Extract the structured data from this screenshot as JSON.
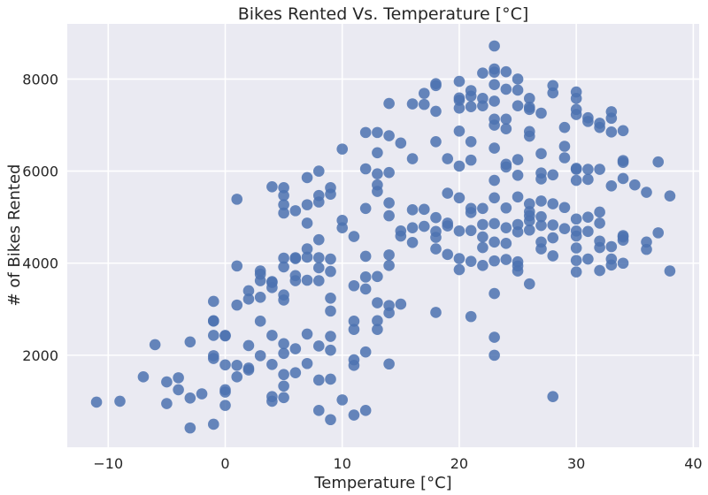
{
  "chart_data": {
    "type": "scatter",
    "title": "Bikes Rented Vs. Temperature [°C]",
    "xlabel": "Temperature [°C]",
    "ylabel": "# of Bikes Rented",
    "xlim": [
      -13.5,
      40.5
    ],
    "ylim": [
      0,
      9200
    ],
    "xticks": [
      -10,
      0,
      10,
      20,
      30,
      40
    ],
    "yticks": [
      2000,
      4000,
      6000,
      8000
    ],
    "xtick_labels": [
      "−10",
      "0",
      "10",
      "20",
      "30",
      "40"
    ],
    "ytick_labels": [
      "2000",
      "4000",
      "6000",
      "8000"
    ],
    "grid": true,
    "legend": "none",
    "color": "#4c72b0",
    "points": [
      [
        -11,
        980
      ],
      [
        -9,
        1000
      ],
      [
        -7,
        1530
      ],
      [
        -6,
        2230
      ],
      [
        -5,
        950
      ],
      [
        -5,
        1420
      ],
      [
        -4,
        1510
      ],
      [
        -4,
        1250
      ],
      [
        -3,
        2290
      ],
      [
        -3,
        420
      ],
      [
        -3,
        1070
      ],
      [
        -2,
        1160
      ],
      [
        -1,
        500
      ],
      [
        -1,
        1930
      ],
      [
        -1,
        1990
      ],
      [
        -1,
        2430
      ],
      [
        -1,
        2740
      ],
      [
        -1,
        2750
      ],
      [
        -1,
        3170
      ],
      [
        0,
        910
      ],
      [
        0,
        1200
      ],
      [
        0,
        1250
      ],
      [
        0,
        1790
      ],
      [
        0,
        2420
      ],
      [
        0,
        2430
      ],
      [
        1,
        1530
      ],
      [
        1,
        1780
      ],
      [
        1,
        3090
      ],
      [
        1,
        3940
      ],
      [
        1,
        5390
      ],
      [
        2,
        1680
      ],
      [
        2,
        1720
      ],
      [
        2,
        2210
      ],
      [
        2,
        3220
      ],
      [
        2,
        3400
      ],
      [
        3,
        1990
      ],
      [
        3,
        2740
      ],
      [
        3,
        3260
      ],
      [
        3,
        3620
      ],
      [
        3,
        3760
      ],
      [
        3,
        3830
      ],
      [
        4,
        1000
      ],
      [
        4,
        1100
      ],
      [
        4,
        1800
      ],
      [
        4,
        2430
      ],
      [
        4,
        3470
      ],
      [
        4,
        3580
      ],
      [
        4,
        3600
      ],
      [
        4,
        5660
      ],
      [
        5,
        1080
      ],
      [
        5,
        1330
      ],
      [
        5,
        1580
      ],
      [
        5,
        2040
      ],
      [
        5,
        2250
      ],
      [
        5,
        3200
      ],
      [
        5,
        3310
      ],
      [
        5,
        3920
      ],
      [
        5,
        4110
      ],
      [
        5,
        5090
      ],
      [
        5,
        5270
      ],
      [
        5,
        5470
      ],
      [
        5,
        5640
      ],
      [
        6,
        1620
      ],
      [
        6,
        2140
      ],
      [
        6,
        3620
      ],
      [
        6,
        3730
      ],
      [
        6,
        4100
      ],
      [
        6,
        4120
      ],
      [
        6,
        5140
      ],
      [
        7,
        1820
      ],
      [
        7,
        2460
      ],
      [
        7,
        3630
      ],
      [
        7,
        4130
      ],
      [
        7,
        4310
      ],
      [
        7,
        4870
      ],
      [
        7,
        5270
      ],
      [
        7,
        5860
      ],
      [
        8,
        800
      ],
      [
        8,
        1460
      ],
      [
        8,
        2200
      ],
      [
        8,
        3620
      ],
      [
        8,
        3900
      ],
      [
        8,
        4120
      ],
      [
        8,
        4510
      ],
      [
        8,
        5330
      ],
      [
        8,
        5470
      ],
      [
        8,
        6000
      ],
      [
        9,
        600
      ],
      [
        9,
        1480
      ],
      [
        9,
        2110
      ],
      [
        9,
        2410
      ],
      [
        9,
        2960
      ],
      [
        9,
        3240
      ],
      [
        9,
        3820
      ],
      [
        9,
        4090
      ],
      [
        9,
        5500
      ],
      [
        9,
        5640
      ],
      [
        10,
        1030
      ],
      [
        10,
        4770
      ],
      [
        10,
        4930
      ],
      [
        10,
        6480
      ],
      [
        11,
        700
      ],
      [
        11,
        1780
      ],
      [
        11,
        1900
      ],
      [
        11,
        2560
      ],
      [
        11,
        2740
      ],
      [
        11,
        3510
      ],
      [
        11,
        4580
      ],
      [
        12,
        800
      ],
      [
        12,
        2070
      ],
      [
        12,
        3440
      ],
      [
        12,
        3700
      ],
      [
        12,
        4150
      ],
      [
        12,
        5190
      ],
      [
        12,
        6050
      ],
      [
        12,
        6840
      ],
      [
        13,
        2560
      ],
      [
        13,
        2750
      ],
      [
        13,
        3140
      ],
      [
        13,
        3710
      ],
      [
        13,
        5560
      ],
      [
        13,
        5700
      ],
      [
        13,
        5940
      ],
      [
        13,
        6400
      ],
      [
        13,
        6840
      ],
      [
        14,
        1810
      ],
      [
        14,
        2920
      ],
      [
        14,
        3080
      ],
      [
        14,
        3950
      ],
      [
        14,
        4180
      ],
      [
        14,
        5030
      ],
      [
        14,
        5310
      ],
      [
        14,
        5970
      ],
      [
        14,
        6770
      ],
      [
        14,
        7470
      ],
      [
        15,
        3110
      ],
      [
        15,
        4590
      ],
      [
        15,
        4700
      ],
      [
        15,
        6610
      ],
      [
        16,
        4450
      ],
      [
        16,
        4770
      ],
      [
        16,
        5160
      ],
      [
        16,
        6270
      ],
      [
        16,
        7460
      ],
      [
        17,
        4800
      ],
      [
        17,
        5170
      ],
      [
        17,
        7450
      ],
      [
        17,
        7690
      ],
      [
        18,
        2930
      ],
      [
        18,
        4310
      ],
      [
        18,
        4560
      ],
      [
        18,
        4690
      ],
      [
        18,
        4990
      ],
      [
        18,
        6640
      ],
      [
        18,
        7300
      ],
      [
        18,
        7860
      ],
      [
        18,
        7900
      ],
      [
        19,
        4190
      ],
      [
        19,
        4810
      ],
      [
        19,
        4870
      ],
      [
        19,
        5520
      ],
      [
        19,
        6270
      ],
      [
        20,
        3860
      ],
      [
        20,
        4100
      ],
      [
        20,
        4700
      ],
      [
        20,
        5420
      ],
      [
        20,
        6110
      ],
      [
        20,
        6870
      ],
      [
        20,
        7370
      ],
      [
        20,
        7540
      ],
      [
        20,
        7590
      ],
      [
        20,
        7950
      ],
      [
        21,
        2840
      ],
      [
        21,
        4040
      ],
      [
        21,
        4710
      ],
      [
        21,
        5100
      ],
      [
        21,
        5190
      ],
      [
        21,
        6240
      ],
      [
        21,
        6640
      ],
      [
        21,
        7400
      ],
      [
        21,
        7630
      ],
      [
        21,
        7750
      ],
      [
        22,
        3950
      ],
      [
        22,
        4340
      ],
      [
        22,
        4570
      ],
      [
        22,
        4840
      ],
      [
        22,
        5190
      ],
      [
        22,
        7420
      ],
      [
        22,
        7580
      ],
      [
        22,
        8130
      ],
      [
        23,
        2000
      ],
      [
        23,
        2390
      ],
      [
        23,
        3340
      ],
      [
        23,
        4050
      ],
      [
        23,
        4460
      ],
      [
        23,
        4860
      ],
      [
        23,
        5420
      ],
      [
        23,
        5800
      ],
      [
        23,
        6500
      ],
      [
        23,
        7000
      ],
      [
        23,
        7130
      ],
      [
        23,
        7520
      ],
      [
        23,
        7880
      ],
      [
        23,
        8150
      ],
      [
        23,
        8220
      ],
      [
        23,
        8720
      ],
      [
        24,
        4080
      ],
      [
        24,
        4430
      ],
      [
        24,
        4770
      ],
      [
        24,
        5200
      ],
      [
        24,
        6090
      ],
      [
        24,
        6150
      ],
      [
        24,
        6920
      ],
      [
        24,
        7130
      ],
      [
        24,
        7780
      ],
      [
        24,
        8160
      ],
      [
        25,
        3830
      ],
      [
        25,
        3940
      ],
      [
        25,
        4030
      ],
      [
        25,
        4680
      ],
      [
        25,
        4840
      ],
      [
        25,
        5440
      ],
      [
        25,
        5910
      ],
      [
        25,
        6250
      ],
      [
        25,
        7420
      ],
      [
        25,
        7760
      ],
      [
        25,
        8000
      ],
      [
        26,
        3550
      ],
      [
        26,
        4720
      ],
      [
        26,
        4920
      ],
      [
        26,
        5030
      ],
      [
        26,
        5120
      ],
      [
        26,
        5290
      ],
      [
        26,
        6760
      ],
      [
        26,
        6860
      ],
      [
        26,
        7340
      ],
      [
        26,
        7390
      ],
      [
        26,
        7580
      ],
      [
        27,
        4310
      ],
      [
        27,
        4460
      ],
      [
        27,
        4820
      ],
      [
        27,
        5010
      ],
      [
        27,
        5350
      ],
      [
        27,
        5830
      ],
      [
        27,
        5960
      ],
      [
        27,
        6380
      ],
      [
        27,
        7260
      ],
      [
        28,
        1100
      ],
      [
        28,
        4160
      ],
      [
        28,
        4550
      ],
      [
        28,
        4830
      ],
      [
        28,
        5290
      ],
      [
        28,
        5920
      ],
      [
        28,
        7700
      ],
      [
        28,
        7860
      ],
      [
        29,
        4750
      ],
      [
        29,
        5210
      ],
      [
        29,
        6290
      ],
      [
        29,
        6540
      ],
      [
        29,
        6950
      ],
      [
        30,
        3810
      ],
      [
        30,
        4060
      ],
      [
        30,
        4330
      ],
      [
        30,
        4590
      ],
      [
        30,
        4700
      ],
      [
        30,
        4960
      ],
      [
        30,
        5800
      ],
      [
        30,
        6040
      ],
      [
        30,
        6060
      ],
      [
        30,
        7230
      ],
      [
        30,
        7340
      ],
      [
        30,
        7580
      ],
      [
        30,
        7720
      ],
      [
        31,
        4090
      ],
      [
        31,
        4690
      ],
      [
        31,
        5000
      ],
      [
        31,
        5820
      ],
      [
        31,
        6040
      ],
      [
        31,
        7080
      ],
      [
        31,
        7160
      ],
      [
        32,
        3840
      ],
      [
        32,
        4340
      ],
      [
        32,
        4480
      ],
      [
        32,
        4870
      ],
      [
        32,
        5110
      ],
      [
        32,
        6040
      ],
      [
        32,
        6950
      ],
      [
        32,
        7040
      ],
      [
        33,
        3960
      ],
      [
        33,
        4090
      ],
      [
        33,
        4360
      ],
      [
        33,
        5680
      ],
      [
        33,
        6850
      ],
      [
        33,
        7150
      ],
      [
        33,
        7290
      ],
      [
        34,
        4000
      ],
      [
        34,
        4500
      ],
      [
        34,
        4570
      ],
      [
        34,
        4600
      ],
      [
        34,
        5840
      ],
      [
        34,
        6190
      ],
      [
        34,
        6230
      ],
      [
        34,
        6880
      ],
      [
        35,
        5700
      ],
      [
        36,
        4300
      ],
      [
        36,
        4460
      ],
      [
        36,
        5540
      ],
      [
        37,
        4660
      ],
      [
        37,
        6200
      ],
      [
        38,
        3830
      ],
      [
        38,
        5460
      ]
    ]
  }
}
